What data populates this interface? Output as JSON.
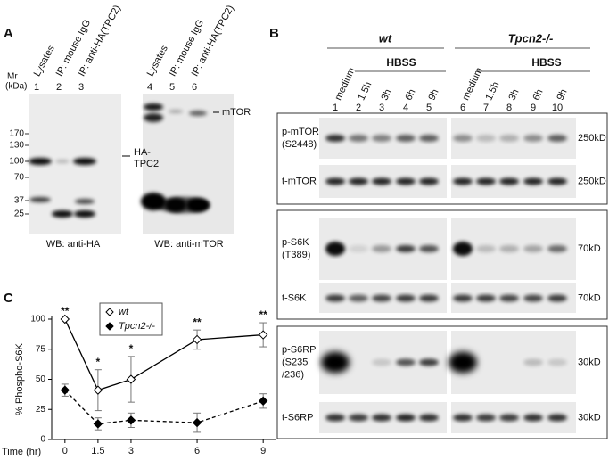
{
  "panel_a": {
    "label": "A",
    "mr": [
      "Mr",
      "(kDa)"
    ],
    "lanes": [
      "Lysates",
      "IP: mouse IgG",
      "IP: anti-HA(TPC2)",
      "Lysates",
      "IP: mouse IgG",
      "IP: anti-HA(TPC2)"
    ],
    "lane_numbers": [
      "1",
      "2",
      "3",
      "4",
      "5",
      "6"
    ],
    "markers": [
      "170",
      "130",
      "100",
      "70",
      "37",
      "25"
    ],
    "arrow_labels": [
      "HA-",
      "TPC2",
      "mTOR"
    ],
    "wb_labels": [
      "WB: anti-HA",
      "WB: anti-mTOR"
    ]
  },
  "panel_b": {
    "label": "B",
    "groups": [
      "wt",
      "Tpcn2-/-"
    ],
    "treatment": "HBSS",
    "lanes": [
      "medium",
      "1.5h",
      "3h",
      "6h",
      "9h",
      "medium",
      "1.5h",
      "3h",
      "6h",
      "9h"
    ],
    "lane_numbers": [
      "1",
      "2",
      "3",
      "4",
      "5",
      "6",
      "7",
      "8",
      "9",
      "10"
    ],
    "rows": [
      {
        "label": [
          "p-mTOR",
          "(S2448)"
        ],
        "size": "250kD"
      },
      {
        "label": [
          "t-mTOR"
        ],
        "size": "250kD"
      },
      {
        "label": [
          "p-S6K",
          "(T389)"
        ],
        "size": "70kD"
      },
      {
        "label": [
          "t-S6K"
        ],
        "size": "70kD"
      },
      {
        "label": [
          "p-S6RP",
          "(S235",
          "/236)"
        ],
        "size": "30kD"
      },
      {
        "label": [
          "t-S6RP"
        ],
        "size": "30kD"
      }
    ]
  },
  "chart_data": {
    "type": "line",
    "label": "C",
    "ylabel": "% Phospho-S6K",
    "xlabel": "Time (hr)",
    "x": [
      0,
      1.5,
      3,
      6,
      9
    ],
    "xlim": [
      -0.6,
      9.6
    ],
    "xticks": [
      0,
      1.5,
      3,
      6,
      9
    ],
    "ylim": [
      0,
      100
    ],
    "yticks": [
      0,
      25,
      50,
      75,
      100
    ],
    "series": [
      {
        "name": "wt",
        "color": "#000000",
        "values": [
          100,
          41,
          50,
          83,
          87
        ],
        "errors": [
          0,
          17,
          19,
          8,
          10
        ]
      },
      {
        "name": "Tpcn2-/-",
        "color": "#000000",
        "values": [
          41,
          13,
          16,
          14,
          32
        ],
        "errors": [
          5,
          5,
          6,
          8,
          6
        ]
      }
    ],
    "annotations": [
      "**",
      "*",
      "*",
      "**",
      "**"
    ]
  }
}
